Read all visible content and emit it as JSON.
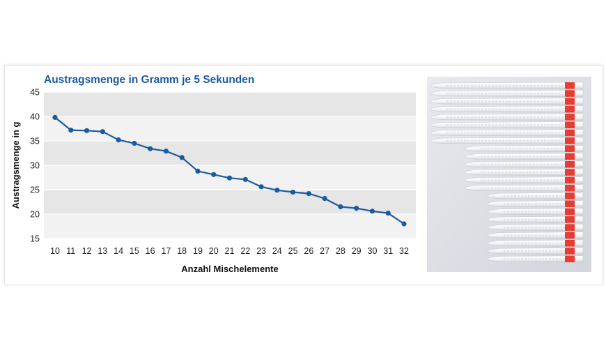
{
  "chart_data": {
    "type": "line",
    "title": "Austragsmenge in Gramm je 5 Sekunden",
    "xlabel": "Anzahl Mischelemente",
    "ylabel": "Austragsmenge in g",
    "categories": [
      "10",
      "11",
      "12",
      "13",
      "14",
      "15",
      "16",
      "17",
      "18",
      "19",
      "20",
      "21",
      "22",
      "23",
      "24",
      "25",
      "26",
      "27",
      "28",
      "29",
      "30",
      "31",
      "32"
    ],
    "series": [
      {
        "values": [
          39.8,
          37.2,
          37.1,
          36.9,
          35.2,
          34.5,
          33.4,
          32.9,
          31.6,
          28.8,
          28.1,
          27.4,
          27.1,
          25.6,
          24.9,
          24.5,
          24.2,
          23.2,
          21.5,
          21.2,
          20.6,
          20.2,
          18.0
        ]
      }
    ],
    "yticks": [
      "15",
      "20",
      "25",
      "30",
      "35",
      "40",
      "45"
    ],
    "ylim": [
      15,
      45
    ],
    "grid": true,
    "legend": "none"
  },
  "colors": {
    "line": "#1c5aa0",
    "title": "#1c5aa0",
    "band_dark": "#e6e6e6",
    "band_light": "#f2f2f2"
  },
  "photo": {
    "description_icon": "mixing-nozzles-photo-icon",
    "label_color": "#e63c32"
  }
}
